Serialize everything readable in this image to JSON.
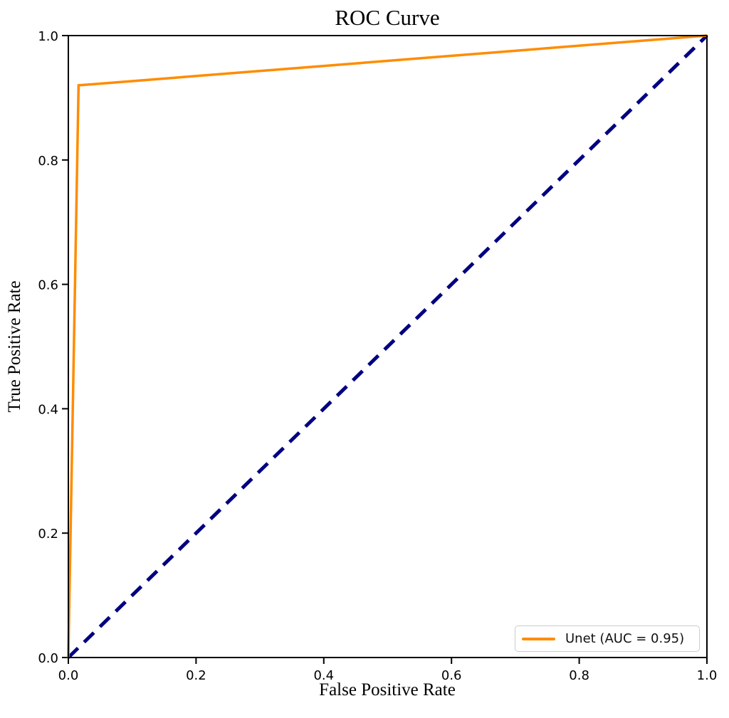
{
  "chart_data": {
    "type": "line",
    "title": "ROC Curve",
    "xlabel": "False Positive Rate",
    "ylabel": "True Positive Rate",
    "xlim": [
      0.0,
      1.0
    ],
    "ylim": [
      0.0,
      1.0
    ],
    "xticks": [
      0.0,
      0.2,
      0.4,
      0.6,
      0.8,
      1.0
    ],
    "xtick_labels": [
      "0.0",
      "0.2",
      "0.4",
      "0.6",
      "0.8",
      "1.0"
    ],
    "yticks": [
      0.0,
      0.2,
      0.4,
      0.6,
      0.8,
      1.0
    ],
    "ytick_labels": [
      "0.0",
      "0.2",
      "0.4",
      "0.6",
      "0.8",
      "1.0"
    ],
    "grid": false,
    "background": "#ffffff",
    "spine_color": "#000000",
    "legend_position": "lower right",
    "series": [
      {
        "name": "chance-diagonal",
        "legend_label": "",
        "color": "#000080",
        "line_style": "dashed",
        "line_width": 5,
        "points": [
          [
            0.0,
            0.0
          ],
          [
            1.0,
            1.0
          ]
        ]
      },
      {
        "name": "unet-roc-curve",
        "legend_label": "Unet (AUC = 0.95)",
        "auc": 0.95,
        "color": "#ff8c00",
        "line_style": "solid",
        "line_width": 3.5,
        "points": [
          [
            0.0,
            0.0
          ],
          [
            0.016,
            0.92
          ],
          [
            1.0,
            1.0
          ]
        ]
      }
    ]
  }
}
